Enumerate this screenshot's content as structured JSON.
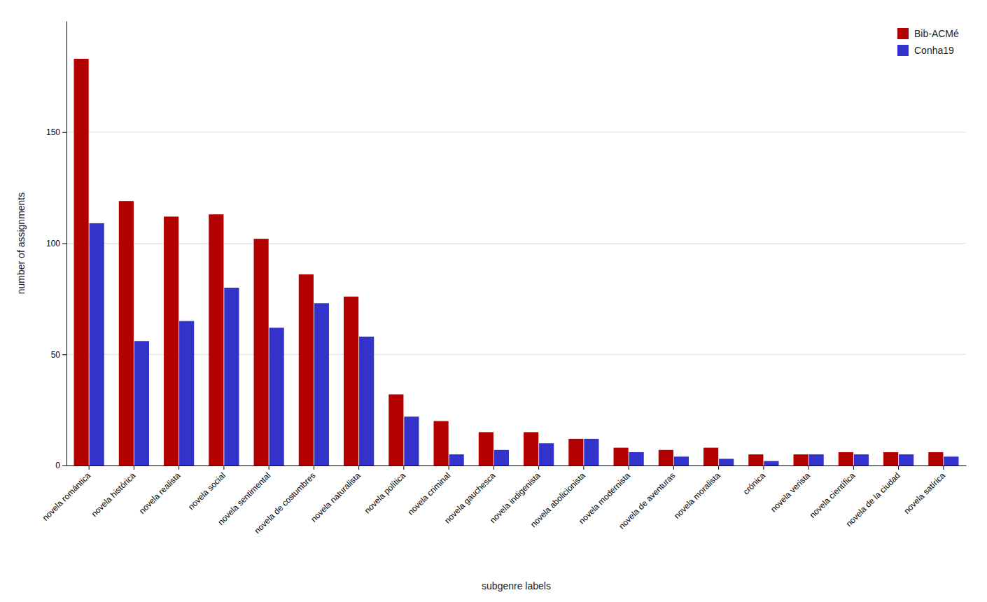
{
  "chart_data": {
    "type": "bar",
    "categories": [
      "novela romántica",
      "novela histórica",
      "novela realista",
      "novela social",
      "novela sentimental",
      "novela de costumbres",
      "novela naturalista",
      "novela política",
      "novela criminal",
      "novela gauchesca",
      "novela indigenista",
      "novela abolicionista",
      "novela modernista",
      "novela de aventuras",
      "novela moralista",
      "crónica",
      "novela verista",
      "novela científica",
      "novela de la ciudad",
      "novela satírica"
    ],
    "series": [
      {
        "name": "Bib-ACMé",
        "color": "#b30000",
        "values": [
          183,
          119,
          112,
          113,
          102,
          86,
          76,
          32,
          20,
          15,
          15,
          12,
          8,
          7,
          8,
          5,
          5,
          6,
          6,
          6
        ]
      },
      {
        "name": "Conha19",
        "color": "#3333cc",
        "values": [
          109,
          56,
          65,
          80,
          62,
          73,
          58,
          22,
          5,
          7,
          10,
          12,
          6,
          4,
          3,
          2,
          5,
          5,
          5,
          4
        ]
      }
    ],
    "xlabel": "subgenre labels",
    "ylabel": "number of assignments",
    "ylim": [
      0,
      200
    ],
    "yticks": [
      0,
      50,
      100,
      150
    ],
    "grid": true,
    "legend": "upper right"
  }
}
